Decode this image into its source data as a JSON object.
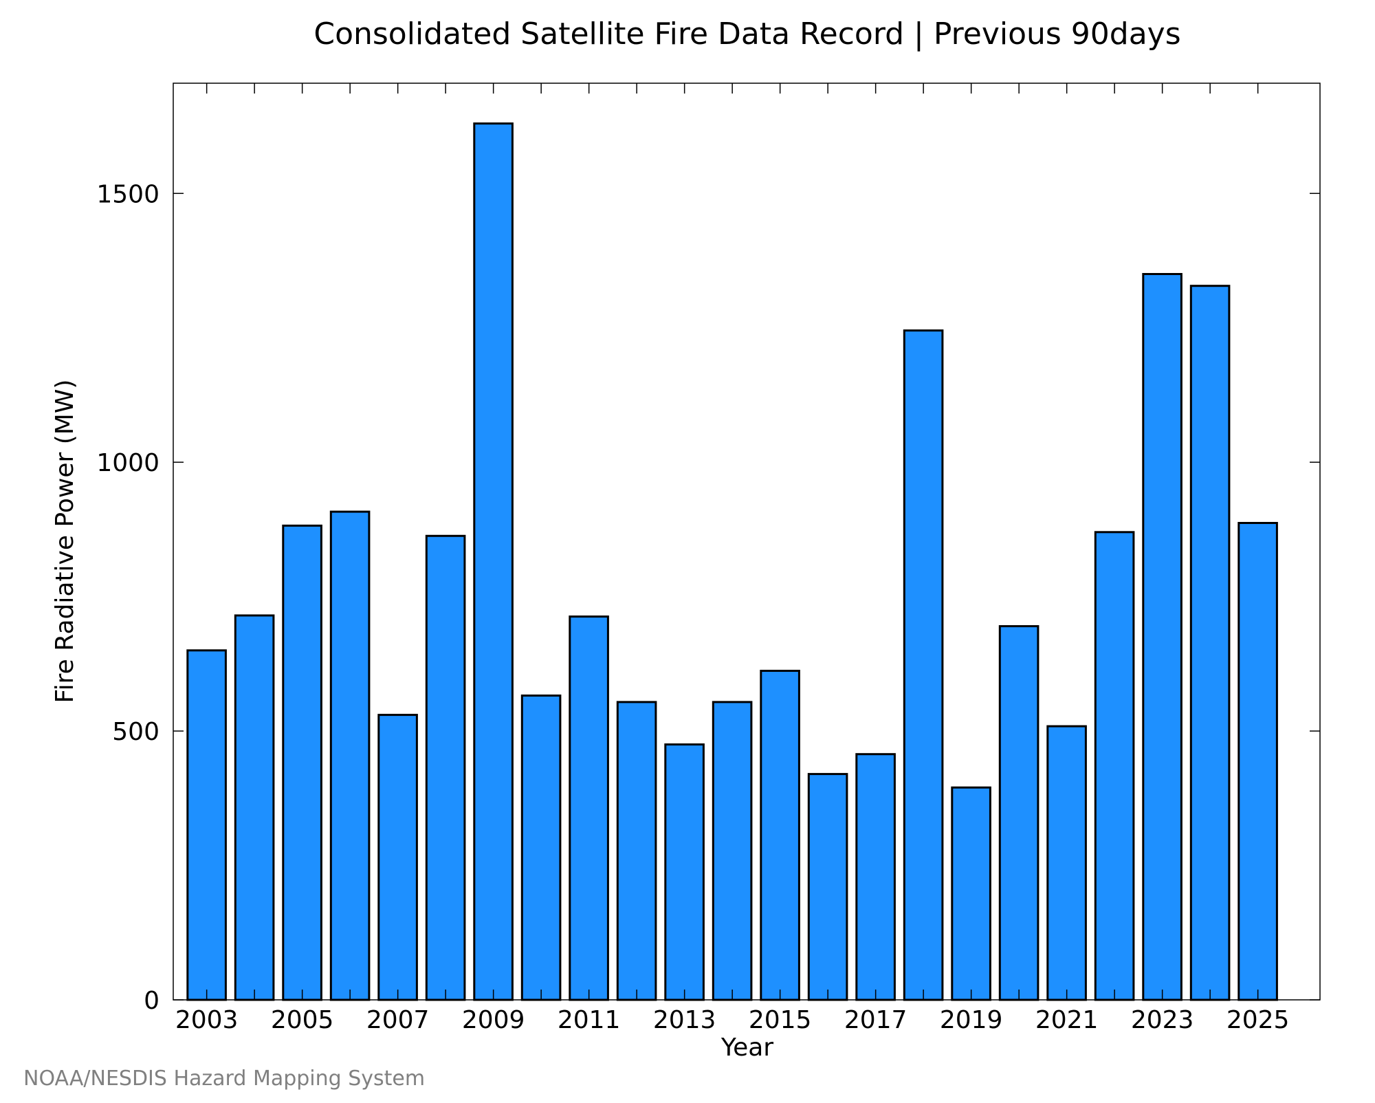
{
  "chart_data": {
    "type": "bar",
    "title": "Consolidated Satellite Fire Data Record | Previous 90days",
    "xlabel": "Year",
    "ylabel": "Fire Radiative Power (MW)",
    "categories": [
      2003,
      2004,
      2005,
      2006,
      2007,
      2008,
      2009,
      2010,
      2011,
      2012,
      2013,
      2014,
      2015,
      2016,
      2017,
      2018,
      2019,
      2020,
      2021,
      2022,
      2023,
      2024,
      2025
    ],
    "x_tick_labels": [
      "2003",
      "2005",
      "2007",
      "2009",
      "2011",
      "2013",
      "2015",
      "2017",
      "2019",
      "2021",
      "2023",
      "2025"
    ],
    "values": [
      650,
      715,
      882,
      908,
      530,
      863,
      1630,
      566,
      713,
      554,
      475,
      554,
      612,
      420,
      457,
      1245,
      395,
      695,
      509,
      870,
      1350,
      1328,
      887
    ],
    "xlim": [
      2002.3,
      2026.3
    ],
    "ylim": [
      0,
      1705
    ],
    "y_ticks": [
      0,
      500,
      1000,
      1500
    ],
    "y_tick_labels": [
      "0",
      "500",
      "1000",
      "1500"
    ],
    "bar_color": "#1e90ff",
    "edge_color": "#000000",
    "grid": false,
    "legend": "none"
  },
  "credit": "NOAA/NESDIS Hazard Mapping System"
}
